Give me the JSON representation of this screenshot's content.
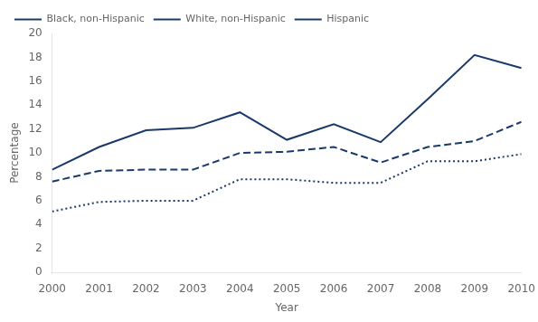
{
  "chart_data": {
    "type": "line",
    "x": [
      2000,
      2001,
      2002,
      2003,
      2004,
      2005,
      2006,
      2007,
      2008,
      2009,
      2010
    ],
    "series": [
      {
        "name": "Black, non-Hispanic",
        "color": "#1a3a6b",
        "line_style": "solid",
        "values": [
          8.6,
          10.5,
          11.9,
          12.1,
          13.4,
          11.1,
          12.4,
          10.9,
          14.5,
          18.2,
          17.1
        ]
      },
      {
        "name": "White, non-Hispanic",
        "color": "#1a3a6b",
        "line_style": "dashed",
        "values": [
          7.6,
          8.5,
          8.6,
          8.6,
          10.0,
          10.1,
          10.5,
          9.2,
          10.5,
          11.0,
          12.6
        ]
      },
      {
        "name": "Hispanic",
        "color": "#1a3a6b",
        "line_style": "dotted",
        "values": [
          5.1,
          5.9,
          6.0,
          6.0,
          7.8,
          7.8,
          7.5,
          7.5,
          9.3,
          9.3,
          9.9
        ]
      }
    ],
    "xlabel": "Year",
    "ylabel": "Percentage",
    "xlim": [
      2000,
      2010
    ],
    "xticks": [
      2000,
      2001,
      2002,
      2003,
      2004,
      2005,
      2006,
      2007,
      2008,
      2009,
      2010
    ],
    "ylim": [
      0,
      20
    ],
    "yticks": [
      0,
      2,
      4,
      6,
      8,
      10,
      12,
      14,
      16,
      18,
      20
    ],
    "grid": false,
    "legend": "upper left"
  }
}
